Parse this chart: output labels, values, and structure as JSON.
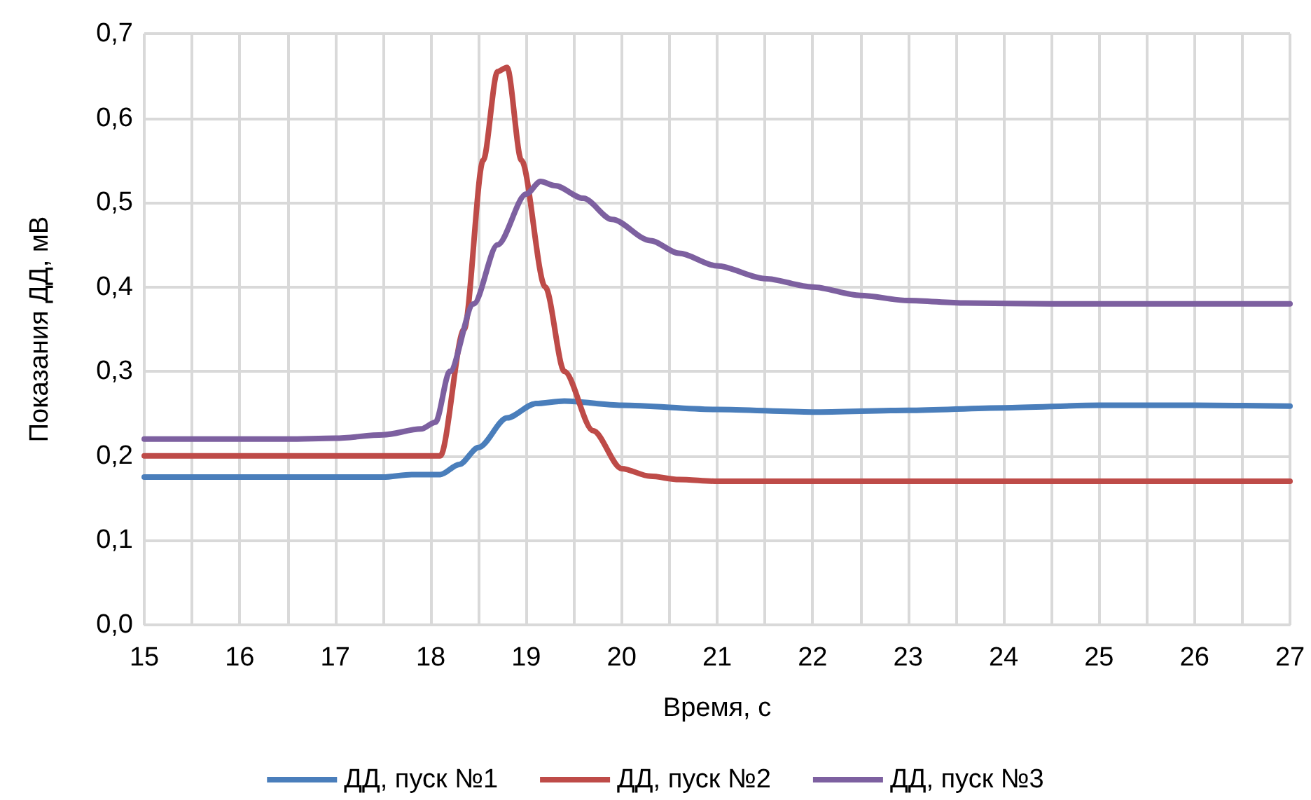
{
  "chart_data": {
    "type": "line",
    "xlabel": "Время, с",
    "ylabel": "Показания ДД, мВ",
    "xlim": [
      15,
      27
    ],
    "ylim": [
      0,
      0.7
    ],
    "xticks": [
      15,
      {
        "value": 15.5,
        "label": null
      },
      16,
      {
        "value": 16.5,
        "label": null
      },
      17,
      {
        "value": 17.5,
        "label": null
      },
      18,
      {
        "value": 18.5,
        "label": null
      },
      19,
      {
        "value": 19.5,
        "label": null
      },
      20,
      {
        "value": 20.5,
        "label": null
      },
      21,
      {
        "value": 21.5,
        "label": null
      },
      22,
      {
        "value": 22.5,
        "label": null
      },
      23,
      {
        "value": 23.5,
        "label": null
      },
      24,
      {
        "value": 24.5,
        "label": null
      },
      25,
      {
        "value": 25.5,
        "label": null
      },
      26,
      {
        "value": 26.5,
        "label": null
      },
      27
    ],
    "yticks": [
      {
        "value": 0,
        "label": "0,0"
      },
      {
        "value": 0.1,
        "label": "0,1"
      },
      {
        "value": 0.2,
        "label": "0,2"
      },
      {
        "value": 0.3,
        "label": "0,3"
      },
      {
        "value": 0.4,
        "label": "0,4"
      },
      {
        "value": 0.5,
        "label": "0,5"
      },
      {
        "value": 0.6,
        "label": "0,6"
      },
      {
        "value": 0.7,
        "label": "0,7"
      }
    ],
    "grid": true,
    "legend": "bottom",
    "marker": "none",
    "line_style": "solid",
    "series": [
      {
        "name": "ДД, пуск №1",
        "color": "#4a7ebb",
        "x": [
          15,
          16,
          17,
          17.5,
          17.8,
          18.1,
          18.3,
          18.5,
          18.8,
          19.1,
          19.4,
          20,
          21,
          22,
          23,
          24,
          25,
          26,
          27
        ],
        "values": [
          0.175,
          0.175,
          0.175,
          0.175,
          0.178,
          0.178,
          0.19,
          0.21,
          0.245,
          0.262,
          0.265,
          0.26,
          0.255,
          0.252,
          0.254,
          0.257,
          0.26,
          0.26,
          0.259
        ]
      },
      {
        "name": "ДД, пуск №2",
        "color": "#be4b48",
        "x": [
          15,
          16,
          17,
          17.9,
          18.1,
          18.35,
          18.55,
          18.7,
          18.8,
          18.95,
          19.2,
          19.4,
          19.7,
          20,
          20.3,
          20.6,
          21,
          22,
          23,
          24,
          25,
          26,
          27
        ],
        "values": [
          0.2,
          0.2,
          0.2,
          0.2,
          0.2,
          0.35,
          0.55,
          0.655,
          0.66,
          0.55,
          0.4,
          0.3,
          0.23,
          0.185,
          0.176,
          0.172,
          0.17,
          0.17,
          0.17,
          0.17,
          0.17,
          0.17,
          0.17
        ]
      },
      {
        "name": "ДД, пуск №3",
        "color": "#7d60a0",
        "x": [
          15,
          16,
          16.5,
          17,
          17.5,
          17.9,
          18.05,
          18.2,
          18.45,
          18.7,
          19,
          19.15,
          19.3,
          19.6,
          19.9,
          20.3,
          20.6,
          21,
          21.5,
          22,
          22.5,
          23,
          23.6,
          24.5,
          25,
          26,
          27
        ],
        "values": [
          0.22,
          0.22,
          0.22,
          0.221,
          0.225,
          0.232,
          0.24,
          0.3,
          0.38,
          0.45,
          0.51,
          0.525,
          0.52,
          0.505,
          0.48,
          0.455,
          0.44,
          0.425,
          0.41,
          0.4,
          0.39,
          0.384,
          0.381,
          0.38,
          0.38,
          0.38,
          0.38
        ]
      }
    ]
  }
}
